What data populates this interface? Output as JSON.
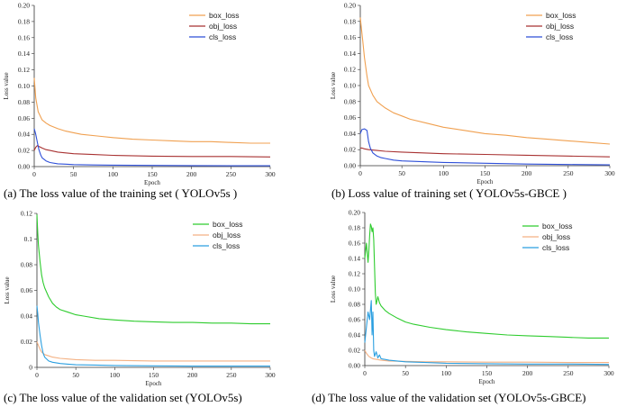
{
  "chart_data": [
    {
      "type": "line",
      "title": "",
      "caption": "(a) The loss value of the training set ( YOLOv5s )",
      "xlabel": "Epoch",
      "ylabel": "Loss value",
      "xlim": [
        0,
        300
      ],
      "ylim": [
        0,
        0.2
      ],
      "xticks": [
        0,
        50,
        100,
        150,
        200,
        250,
        300
      ],
      "yticks": [
        0.0,
        0.02,
        0.04,
        0.06,
        0.08,
        0.1,
        0.12,
        0.14,
        0.16,
        0.18,
        0.2
      ],
      "ytick_labels": [
        "0.00",
        "0.02",
        "0.04",
        "0.06",
        "0.08",
        "0.10",
        "0.12",
        "0.14",
        "0.16",
        "0.18",
        "0.20"
      ],
      "legend_position": "top-right",
      "series": [
        {
          "name": "box_loss",
          "color": "#F0A050",
          "x": [
            0,
            2,
            5,
            10,
            15,
            20,
            30,
            40,
            50,
            60,
            80,
            100,
            125,
            150,
            175,
            200,
            225,
            250,
            275,
            300
          ],
          "values": [
            0.11,
            0.085,
            0.068,
            0.058,
            0.054,
            0.051,
            0.047,
            0.044,
            0.042,
            0.04,
            0.038,
            0.036,
            0.034,
            0.033,
            0.032,
            0.031,
            0.031,
            0.03,
            0.029,
            0.029
          ]
        },
        {
          "name": "obj_loss",
          "color": "#A83232",
          "x": [
            0,
            2,
            4,
            6,
            8,
            10,
            15,
            20,
            30,
            40,
            50,
            75,
            100,
            150,
            200,
            250,
            300
          ],
          "values": [
            0.02,
            0.024,
            0.026,
            0.025,
            0.024,
            0.023,
            0.021,
            0.02,
            0.018,
            0.017,
            0.016,
            0.015,
            0.014,
            0.013,
            0.0125,
            0.0125,
            0.012
          ]
        },
        {
          "name": "cls_loss",
          "color": "#2E4FD8",
          "x": [
            0,
            2,
            4,
            6,
            8,
            10,
            15,
            20,
            30,
            40,
            50,
            75,
            100,
            150,
            200,
            250,
            300
          ],
          "values": [
            0.047,
            0.04,
            0.03,
            0.021,
            0.015,
            0.011,
            0.007,
            0.005,
            0.0035,
            0.003,
            0.0025,
            0.002,
            0.0018,
            0.0015,
            0.0012,
            0.001,
            0.001
          ]
        }
      ]
    },
    {
      "type": "line",
      "title": "",
      "caption": "(b) Loss value of training set ( YOLOv5s-GBCE )",
      "xlabel": "Epoch",
      "ylabel": "Loss value",
      "xlim": [
        0,
        300
      ],
      "ylim": [
        0,
        0.2
      ],
      "xticks": [
        0,
        50,
        100,
        150,
        200,
        250,
        300
      ],
      "yticks": [
        0.0,
        0.02,
        0.04,
        0.06,
        0.08,
        0.1,
        0.12,
        0.14,
        0.16,
        0.18,
        0.2
      ],
      "ytick_labels": [
        "0.00",
        "0.02",
        "0.04",
        "0.06",
        "0.08",
        "0.10",
        "0.12",
        "0.14",
        "0.16",
        "0.18",
        "0.20"
      ],
      "legend_position": "top-right",
      "series": [
        {
          "name": "box_loss",
          "color": "#F0A050",
          "x": [
            0,
            1,
            3,
            5,
            8,
            10,
            15,
            20,
            25,
            30,
            40,
            50,
            60,
            80,
            100,
            125,
            150,
            175,
            200,
            225,
            250,
            275,
            300
          ],
          "values": [
            0.185,
            0.175,
            0.155,
            0.135,
            0.112,
            0.1,
            0.088,
            0.08,
            0.076,
            0.072,
            0.066,
            0.062,
            0.058,
            0.053,
            0.048,
            0.044,
            0.04,
            0.038,
            0.035,
            0.033,
            0.031,
            0.029,
            0.027
          ]
        },
        {
          "name": "obj_loss",
          "color": "#A83232",
          "x": [
            0,
            2,
            5,
            10,
            20,
            30,
            50,
            75,
            100,
            150,
            200,
            250,
            300
          ],
          "values": [
            0.022,
            0.022,
            0.021,
            0.02,
            0.019,
            0.018,
            0.017,
            0.016,
            0.015,
            0.014,
            0.013,
            0.012,
            0.011
          ]
        },
        {
          "name": "cls_loss",
          "color": "#2E4FD8",
          "x": [
            0,
            2,
            5,
            8,
            10,
            12,
            15,
            20,
            25,
            30,
            40,
            50,
            75,
            100,
            150,
            200,
            250,
            300
          ],
          "values": [
            0.04,
            0.045,
            0.046,
            0.044,
            0.03,
            0.022,
            0.016,
            0.012,
            0.01,
            0.009,
            0.007,
            0.006,
            0.005,
            0.004,
            0.003,
            0.002,
            0.0015,
            0.001
          ]
        }
      ]
    },
    {
      "type": "line",
      "title": "",
      "caption": "(c) The loss value of the validation set (YOLOv5s)",
      "xlabel": "Epoch",
      "ylabel": "Loss value",
      "xlim": [
        0,
        300
      ],
      "ylim": [
        0,
        0.12
      ],
      "xticks": [
        0,
        50,
        100,
        150,
        200,
        250,
        300
      ],
      "yticks": [
        0.0,
        0.02,
        0.04,
        0.06,
        0.08,
        0.1,
        0.12
      ],
      "ytick_labels": [
        "0",
        "0.02",
        "0.04",
        "0.06",
        "0.08",
        "0.1",
        "0.12"
      ],
      "legend_position": "top-right",
      "series": [
        {
          "name": "box_loss",
          "color": "#2ECC2E",
          "x": [
            0,
            1,
            2,
            4,
            6,
            8,
            10,
            15,
            20,
            25,
            30,
            40,
            50,
            60,
            80,
            100,
            125,
            150,
            175,
            200,
            225,
            250,
            275,
            300
          ],
          "values": [
            0.119,
            0.105,
            0.095,
            0.082,
            0.072,
            0.066,
            0.062,
            0.055,
            0.05,
            0.047,
            0.045,
            0.043,
            0.041,
            0.04,
            0.038,
            0.037,
            0.036,
            0.0355,
            0.035,
            0.035,
            0.0345,
            0.0345,
            0.034,
            0.034
          ]
        },
        {
          "name": "obj_loss",
          "color": "#F4B183",
          "x": [
            0,
            2,
            4,
            6,
            8,
            10,
            15,
            20,
            30,
            40,
            50,
            75,
            100,
            150,
            200,
            250,
            300
          ],
          "values": [
            0.02,
            0.017,
            0.014,
            0.012,
            0.011,
            0.01,
            0.009,
            0.008,
            0.007,
            0.0065,
            0.006,
            0.0055,
            0.0055,
            0.005,
            0.005,
            0.005,
            0.005
          ]
        },
        {
          "name": "cls_loss",
          "color": "#2B9FE0",
          "x": [
            0,
            1,
            2,
            4,
            6,
            8,
            10,
            15,
            20,
            30,
            40,
            50,
            75,
            100,
            150,
            200,
            250,
            300
          ],
          "values": [
            0.048,
            0.042,
            0.035,
            0.025,
            0.017,
            0.011,
            0.008,
            0.005,
            0.004,
            0.003,
            0.0025,
            0.002,
            0.0018,
            0.0015,
            0.0012,
            0.001,
            0.001,
            0.001
          ]
        }
      ]
    },
    {
      "type": "line",
      "title": "",
      "caption": "(d) The loss value of the validation set (YOLOv5s-GBCE)",
      "xlabel": "Epoch",
      "ylabel": "Loss value",
      "xlim": [
        0,
        300
      ],
      "ylim": [
        0,
        0.2
      ],
      "xticks": [
        0,
        50,
        100,
        150,
        200,
        250,
        300
      ],
      "yticks": [
        0.0,
        0.02,
        0.04,
        0.06,
        0.08,
        0.1,
        0.12,
        0.14,
        0.16,
        0.18,
        0.2
      ],
      "ytick_labels": [
        "0.00",
        "0.02",
        "0.04",
        "0.06",
        "0.08",
        "0.10",
        "0.12",
        "0.14",
        "0.16",
        "0.18",
        "0.20"
      ],
      "legend_position": "top-right",
      "series": [
        {
          "name": "box_loss",
          "color": "#2ECC2E",
          "x": [
            0,
            2,
            4,
            5,
            6,
            7,
            8,
            9,
            10,
            11,
            12,
            13,
            14,
            15,
            16,
            18,
            20,
            25,
            30,
            40,
            50,
            60,
            80,
            100,
            125,
            150,
            175,
            200,
            225,
            250,
            275,
            300
          ],
          "values": [
            0.14,
            0.16,
            0.135,
            0.15,
            0.17,
            0.185,
            0.182,
            0.175,
            0.18,
            0.165,
            0.13,
            0.095,
            0.08,
            0.085,
            0.09,
            0.082,
            0.078,
            0.072,
            0.068,
            0.062,
            0.057,
            0.054,
            0.05,
            0.047,
            0.044,
            0.042,
            0.04,
            0.039,
            0.038,
            0.037,
            0.036,
            0.036
          ]
        },
        {
          "name": "obj_loss",
          "color": "#F4B183",
          "x": [
            0,
            2,
            5,
            8,
            10,
            15,
            20,
            30,
            50,
            75,
            100,
            150,
            200,
            250,
            300
          ],
          "values": [
            0.02,
            0.016,
            0.012,
            0.01,
            0.009,
            0.008,
            0.007,
            0.006,
            0.0055,
            0.005,
            0.005,
            0.0045,
            0.0045,
            0.004,
            0.004
          ]
        },
        {
          "name": "cls_loss",
          "color": "#2B9FE0",
          "x": [
            0,
            2,
            4,
            6,
            8,
            9,
            10,
            11,
            12,
            14,
            16,
            18,
            20,
            25,
            30,
            40,
            50,
            75,
            100,
            150,
            200,
            250,
            300
          ],
          "values": [
            0.03,
            0.05,
            0.07,
            0.06,
            0.085,
            0.04,
            0.07,
            0.02,
            0.012,
            0.018,
            0.01,
            0.014,
            0.009,
            0.008,
            0.007,
            0.006,
            0.005,
            0.004,
            0.003,
            0.0025,
            0.002,
            0.002,
            0.0015
          ]
        }
      ]
    }
  ]
}
